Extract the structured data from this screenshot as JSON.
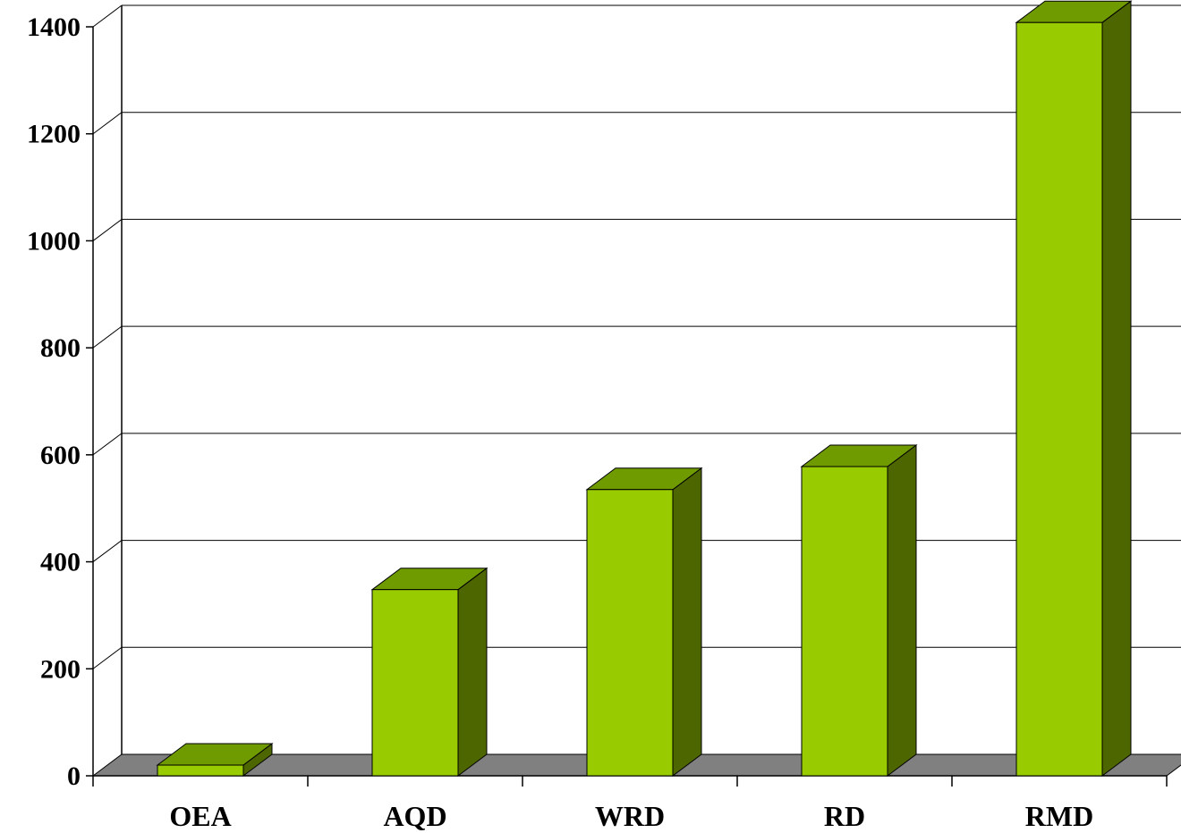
{
  "chart_data": {
    "type": "bar",
    "style": "3d-column",
    "title": "",
    "xlabel": "",
    "ylabel": "",
    "categories": [
      "OEA",
      "AQD",
      "WRD",
      "RD",
      "RMD"
    ],
    "values": [
      20,
      348,
      535,
      578,
      1408
    ],
    "ylim": [
      0,
      1400
    ],
    "yticks": [
      0,
      200,
      400,
      600,
      800,
      1000,
      1200,
      1400
    ],
    "grid": true,
    "legend": "none"
  },
  "colors": {
    "bar_front": "#99cc00",
    "bar_top": "#6f9a00",
    "bar_side": "#4d6600",
    "floor": "#808080",
    "gridline": "#000000",
    "background": "#ffffff"
  }
}
